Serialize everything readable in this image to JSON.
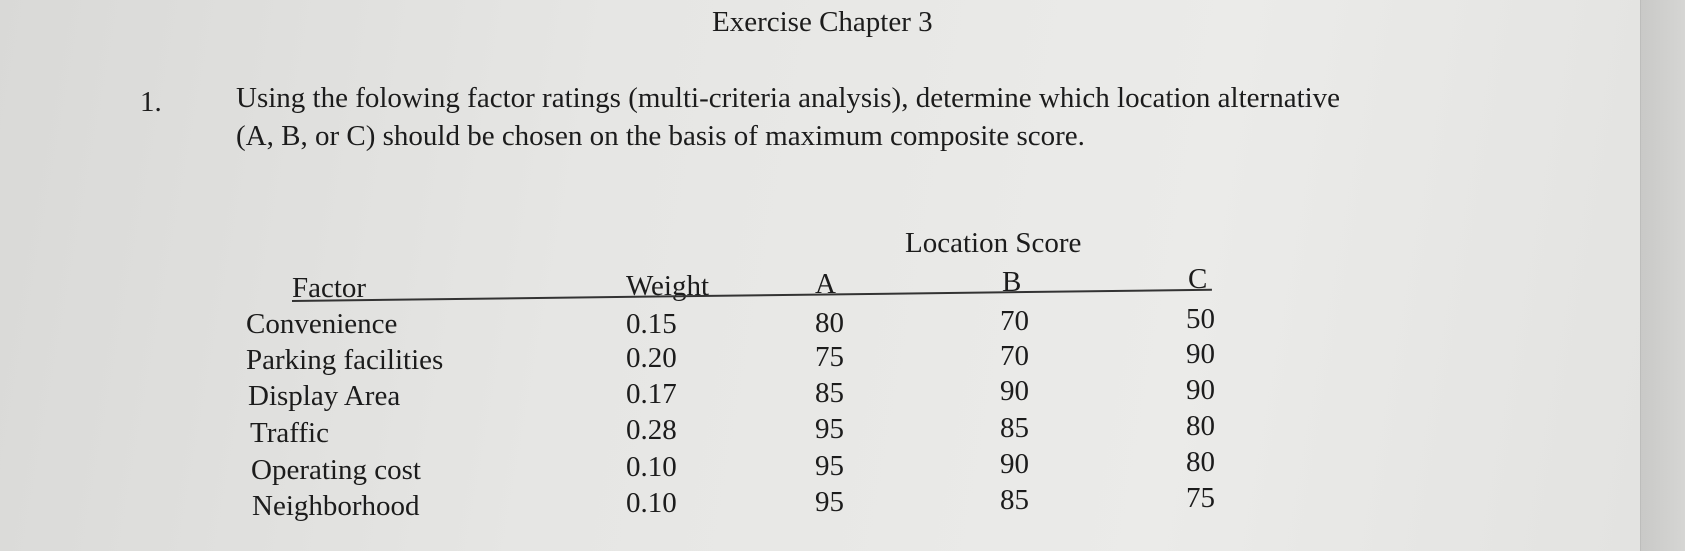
{
  "header": {
    "title": "Exercise Chapter 3"
  },
  "question": {
    "number": "1.",
    "line1": "Using the folowing factor ratings (multi-criteria analysis), determine which location alternative",
    "line2": "(A, B, or C) should be chosen on the basis of maximum composite score."
  },
  "table": {
    "group_header": "Location Score",
    "columns": {
      "factor": "Factor",
      "weight": "Weight",
      "a": "A",
      "b": "B",
      "c": "C"
    },
    "rows": [
      {
        "factor": "Convenience",
        "weight": "0.15",
        "a": "80",
        "b": "70",
        "c": "50"
      },
      {
        "factor": "Parking facilities",
        "weight": "0.20",
        "a": "75",
        "b": "70",
        "c": "90"
      },
      {
        "factor": "Display Area",
        "weight": "0.17",
        "a": "85",
        "b": "90",
        "c": "90"
      },
      {
        "factor": "Traffic",
        "weight": "0.28",
        "a": "95",
        "b": "85",
        "c": "80"
      },
      {
        "factor": "Operating cost",
        "weight": "0.10",
        "a": "95",
        "b": "90",
        "c": "80"
      },
      {
        "factor": "Neighborhood",
        "weight": "0.10",
        "a": "95",
        "b": "85",
        "c": "75"
      }
    ]
  }
}
